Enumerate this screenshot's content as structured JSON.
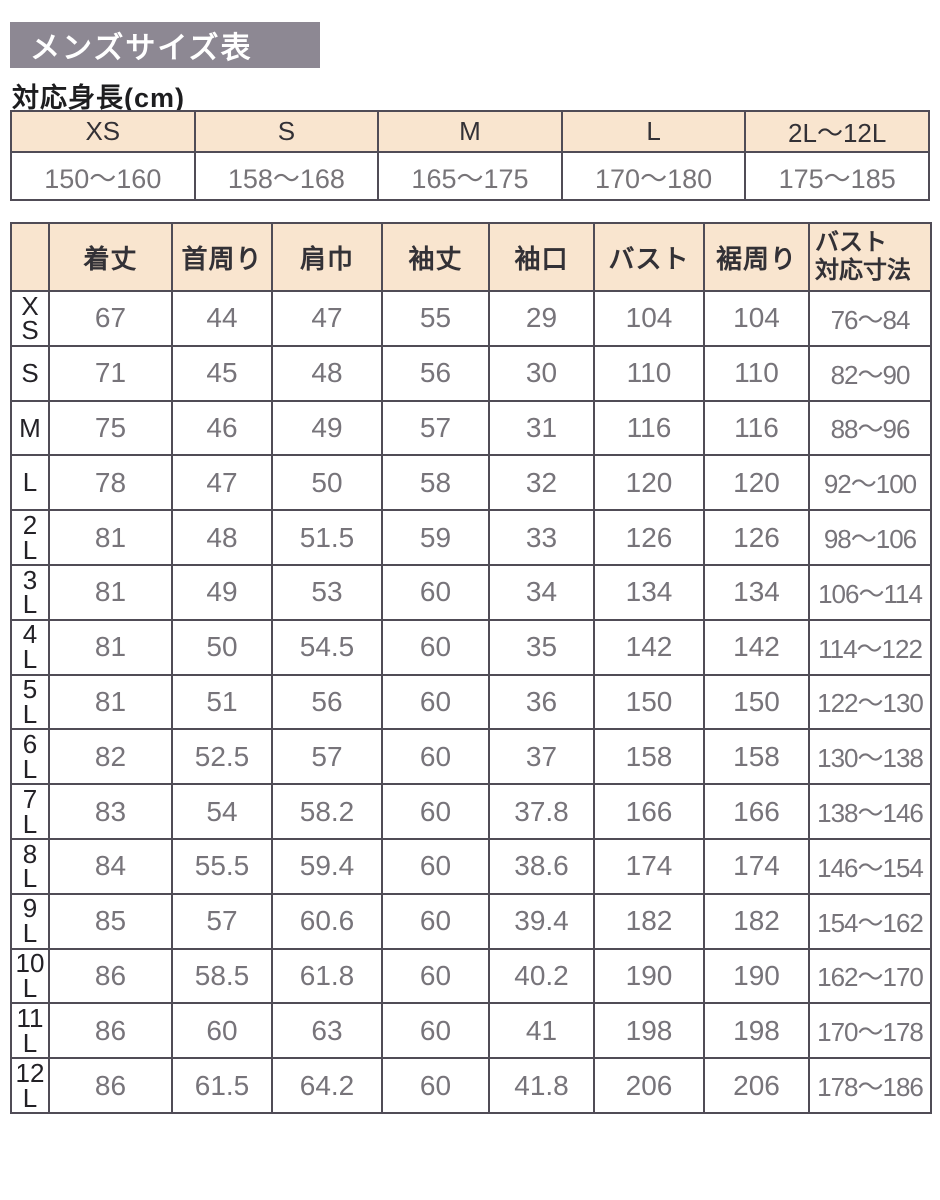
{
  "page": {
    "title": "メンズサイズ表",
    "subtitle": "対応身長(cm)"
  },
  "colors": {
    "banner_bg": "#8d8893",
    "table_header_bg": "#f9e5cf",
    "border": "#504c56",
    "value_text": "#77747a",
    "label_text": "#232126",
    "title_text": "#ffffff"
  },
  "height_table": {
    "columns": [
      "XS",
      "S",
      "M",
      "L",
      "2L～12L"
    ],
    "values": [
      "150～160",
      "158～168",
      "165～175",
      "170～180",
      "175～185"
    ]
  },
  "size_table": {
    "corner_label": "",
    "columns": [
      "着丈",
      "首周り",
      "肩巾",
      "袖丈",
      "袖口",
      "バスト",
      "裾周り"
    ],
    "last_column": "バスト\n対応寸法",
    "rows": [
      {
        "label": "X\nS",
        "values": [
          "67",
          "44",
          "47",
          "55",
          "29",
          "104",
          "104"
        ],
        "bust_range": "76～84"
      },
      {
        "label": "S",
        "values": [
          "71",
          "45",
          "48",
          "56",
          "30",
          "110",
          "110"
        ],
        "bust_range": "82～90"
      },
      {
        "label": "M",
        "values": [
          "75",
          "46",
          "49",
          "57",
          "31",
          "116",
          "116"
        ],
        "bust_range": "88～96"
      },
      {
        "label": "L",
        "values": [
          "78",
          "47",
          "50",
          "58",
          "32",
          "120",
          "120"
        ],
        "bust_range": "92～100"
      },
      {
        "label": "2\nL",
        "values": [
          "81",
          "48",
          "51.5",
          "59",
          "33",
          "126",
          "126"
        ],
        "bust_range": "98～106"
      },
      {
        "label": "3\nL",
        "values": [
          "81",
          "49",
          "53",
          "60",
          "34",
          "134",
          "134"
        ],
        "bust_range": "106～114"
      },
      {
        "label": "4\nL",
        "values": [
          "81",
          "50",
          "54.5",
          "60",
          "35",
          "142",
          "142"
        ],
        "bust_range": "114～122"
      },
      {
        "label": "5\nL",
        "values": [
          "81",
          "51",
          "56",
          "60",
          "36",
          "150",
          "150"
        ],
        "bust_range": "122～130"
      },
      {
        "label": "6\nL",
        "values": [
          "82",
          "52.5",
          "57",
          "60",
          "37",
          "158",
          "158"
        ],
        "bust_range": "130～138"
      },
      {
        "label": "7\nL",
        "values": [
          "83",
          "54",
          "58.2",
          "60",
          "37.8",
          "166",
          "166"
        ],
        "bust_range": "138～146"
      },
      {
        "label": "8\nL",
        "values": [
          "84",
          "55.5",
          "59.4",
          "60",
          "38.6",
          "174",
          "174"
        ],
        "bust_range": "146～154"
      },
      {
        "label": "9\nL",
        "values": [
          "85",
          "57",
          "60.6",
          "60",
          "39.4",
          "182",
          "182"
        ],
        "bust_range": "154～162"
      },
      {
        "label": "10\nL",
        "values": [
          "86",
          "58.5",
          "61.8",
          "60",
          "40.2",
          "190",
          "190"
        ],
        "bust_range": "162～170"
      },
      {
        "label": "11\nL",
        "values": [
          "86",
          "60",
          "63",
          "60",
          "41",
          "198",
          "198"
        ],
        "bust_range": "170～178"
      },
      {
        "label": "12\nL",
        "values": [
          "86",
          "61.5",
          "64.2",
          "60",
          "41.8",
          "206",
          "206"
        ],
        "bust_range": "178～186"
      }
    ]
  }
}
